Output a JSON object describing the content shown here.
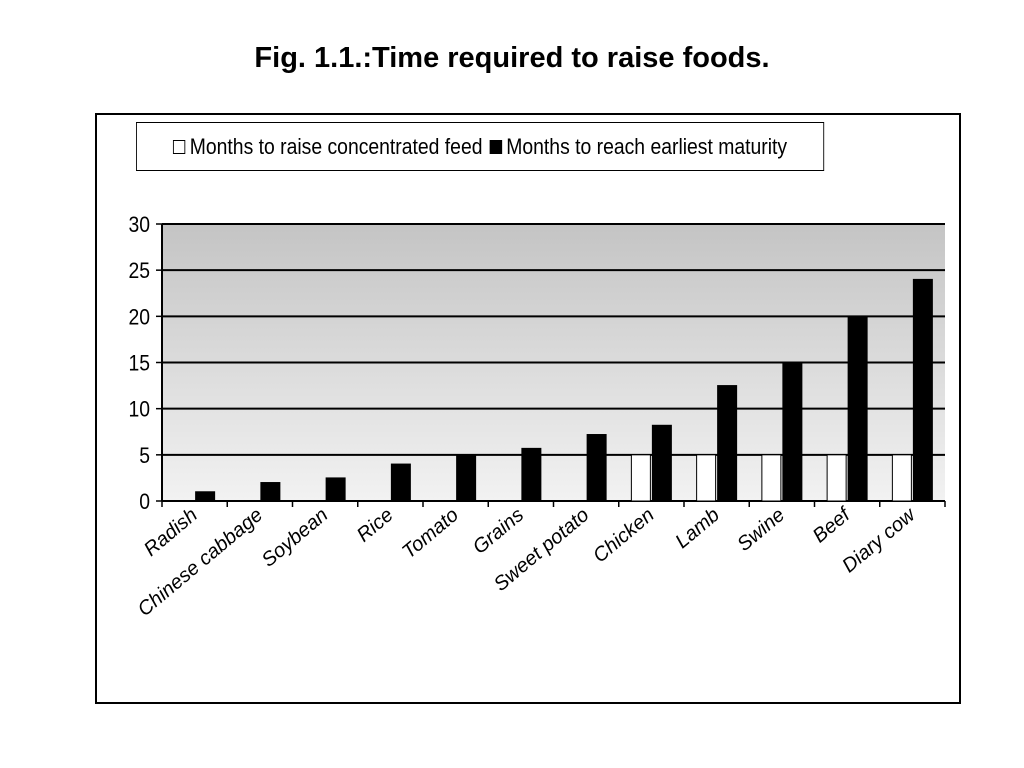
{
  "title": "Fig. 1.1.:Time required to raise foods.",
  "chart_data": {
    "type": "bar",
    "categories": [
      "Radish",
      "Chinese cabbage",
      "Soybean",
      "Rice",
      "Tomato",
      "Grains",
      "Sweet potato",
      "Chicken",
      "Lamb",
      "Swine",
      "Beef",
      "Diary cow"
    ],
    "series": [
      {
        "name": "Months to raise concentrated feed",
        "color": "#ffffff",
        "values": [
          0,
          0,
          0,
          0,
          0,
          0,
          0,
          5,
          5,
          5,
          5,
          5
        ]
      },
      {
        "name": "Months to reach earliest maturity",
        "color": "#000000",
        "values": [
          1,
          2,
          2.5,
          4,
          5,
          5.7,
          7.2,
          8.2,
          12.5,
          15,
          20,
          24
        ]
      }
    ],
    "ylim": [
      0,
      30
    ],
    "yticks": [
      "0",
      "5",
      "10",
      "15",
      "20",
      "25",
      "30"
    ],
    "grid": true,
    "legend_position": "top",
    "plot_background": [
      "#c4c4c4",
      "#f2f2f2"
    ]
  }
}
